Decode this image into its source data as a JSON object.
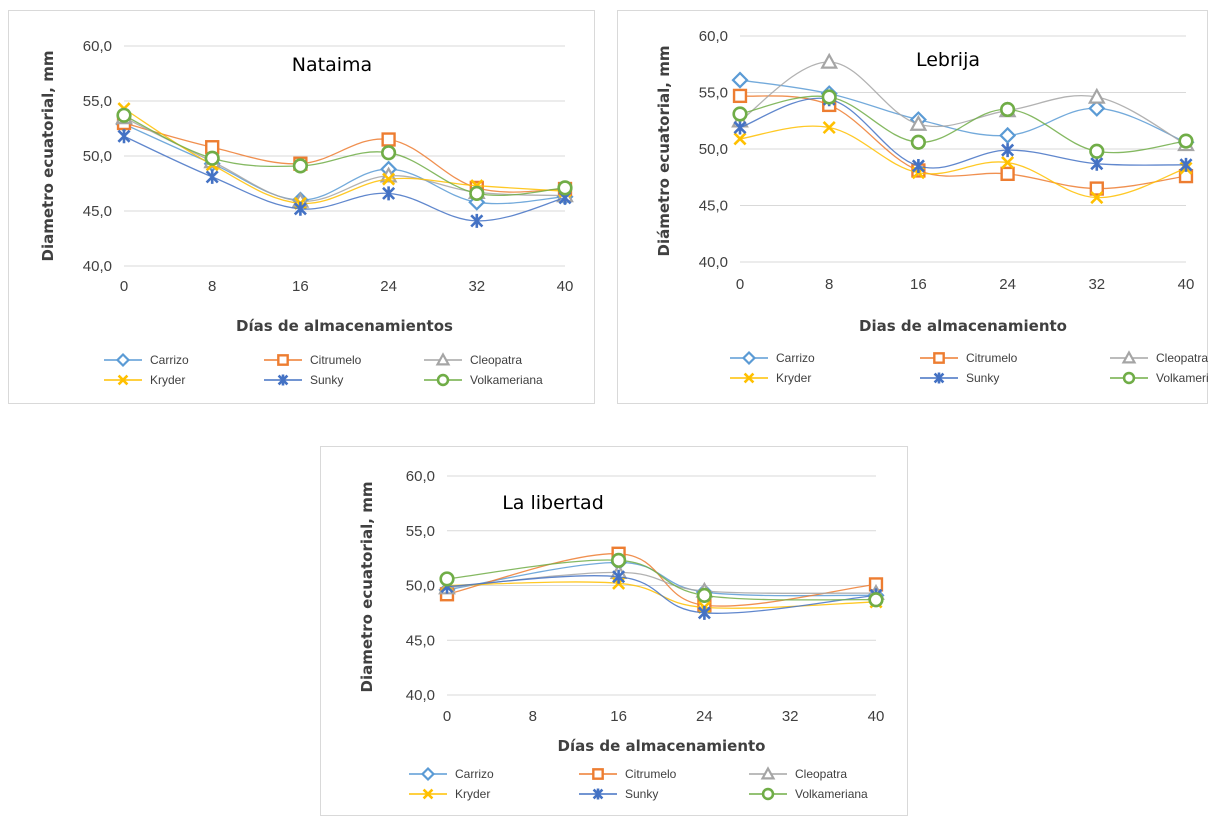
{
  "colors": {
    "Carrizo": "#5b9bd5",
    "Citrumelo": "#ed7d31",
    "Cleopatra": "#a5a5a5",
    "Kryder": "#ffc000",
    "Sunky": "#4472c4",
    "Volkameriana": "#70ad47"
  },
  "markers": {
    "Carrizo": "diamond-icon",
    "Citrumelo": "square-icon",
    "Cleopatra": "triangle-icon",
    "Kryder": "x-icon",
    "Sunky": "star-icon",
    "Volkameriana": "circle-icon"
  },
  "chart_data": [
    {
      "type": "line",
      "title": "Nataima",
      "xlabel": "Días de almacenamientos",
      "ylabel": "Diametro ecuatorial, mm",
      "x": [
        0,
        8,
        16,
        24,
        32,
        40
      ],
      "x_ticks": [
        "0",
        "8",
        "16",
        "24",
        "32",
        "40"
      ],
      "y_ticks": [
        "40,0",
        "45,0",
        "50,0",
        "55,0",
        "60,0"
      ],
      "ylim": [
        40,
        60
      ],
      "grid": true,
      "legend": "bottom",
      "series": [
        {
          "name": "Carrizo",
          "values": [
            52.9,
            49.3,
            46.0,
            48.8,
            45.8,
            46.3
          ]
        },
        {
          "name": "Citrumelo",
          "values": [
            53.0,
            50.8,
            49.3,
            51.5,
            47.1,
            47.0
          ]
        },
        {
          "name": "Cleopatra",
          "values": [
            53.5,
            49.5,
            45.9,
            48.2,
            46.7,
            46.4
          ]
        },
        {
          "name": "Kryder",
          "values": [
            54.3,
            49.2,
            45.7,
            47.9,
            47.3,
            46.8
          ]
        },
        {
          "name": "Sunky",
          "values": [
            51.8,
            48.1,
            45.2,
            46.6,
            44.1,
            46.2
          ]
        },
        {
          "name": "Volkameriana",
          "values": [
            53.7,
            49.8,
            49.1,
            50.3,
            46.6,
            47.1
          ]
        }
      ]
    },
    {
      "type": "line",
      "title": "Lebrija",
      "xlabel": "Dias de almacenamiento",
      "ylabel": "Diámetro ecuatorial, mm",
      "x": [
        0,
        8,
        16,
        24,
        32,
        40
      ],
      "x_ticks": [
        "0",
        "8",
        "16",
        "24",
        "32",
        "40"
      ],
      "y_ticks": [
        "40,0",
        "45,0",
        "50,0",
        "55,0",
        "60,0"
      ],
      "ylim": [
        40,
        60
      ],
      "grid": true,
      "legend": "bottom",
      "series": [
        {
          "name": "Carrizo",
          "values": [
            56.1,
            54.9,
            52.6,
            51.2,
            53.6,
            50.6
          ]
        },
        {
          "name": "Citrumelo",
          "values": [
            54.7,
            53.9,
            48.1,
            47.8,
            46.5,
            47.6
          ]
        },
        {
          "name": "Cleopatra",
          "values": [
            52.5,
            57.7,
            52.2,
            53.4,
            54.6,
            50.4
          ]
        },
        {
          "name": "Kryder",
          "values": [
            50.9,
            51.9,
            47.9,
            48.8,
            45.7,
            48.3
          ]
        },
        {
          "name": "Sunky",
          "values": [
            51.9,
            54.4,
            48.5,
            49.9,
            48.7,
            48.6
          ]
        },
        {
          "name": "Volkameriana",
          "values": [
            53.1,
            54.6,
            50.6,
            53.5,
            49.8,
            50.7
          ]
        }
      ]
    },
    {
      "type": "line",
      "title": "La libertad",
      "xlabel": "Días de almacenamiento",
      "ylabel": "Diametro ecuatorial, mm",
      "x": [
        0,
        16,
        24,
        40
      ],
      "x_ticks": [
        "0",
        "8",
        "16",
        "24",
        "32",
        "40"
      ],
      "y_ticks": [
        "40,0",
        "45,0",
        "50,0",
        "55,0",
        "60,0"
      ],
      "ylim": [
        40,
        60
      ],
      "grid": true,
      "legend": "bottom",
      "series": [
        {
          "name": "Carrizo",
          "values": [
            49.6,
            52.1,
            49.4,
            49.1
          ]
        },
        {
          "name": "Citrumelo",
          "values": [
            49.2,
            52.9,
            48.2,
            50.1
          ]
        },
        {
          "name": "Cleopatra",
          "values": [
            49.8,
            51.2,
            49.5,
            49.3
          ]
        },
        {
          "name": "Kryder",
          "values": [
            50.0,
            50.2,
            48.0,
            48.5
          ]
        },
        {
          "name": "Sunky",
          "values": [
            49.9,
            50.8,
            47.5,
            49.1
          ]
        },
        {
          "name": "Volkameriana",
          "values": [
            50.6,
            52.3,
            49.1,
            48.7
          ]
        }
      ]
    }
  ]
}
